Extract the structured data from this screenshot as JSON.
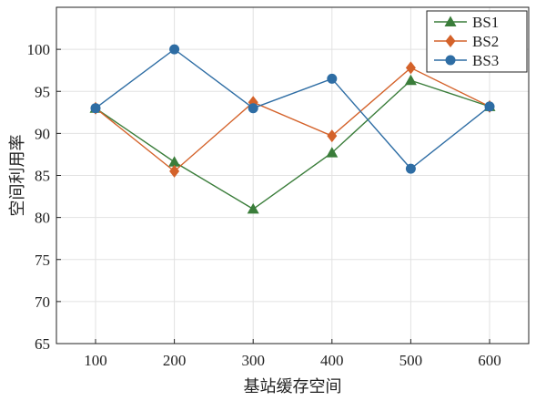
{
  "chart_data": {
    "type": "line",
    "title": "",
    "xlabel": "基站缓存空间",
    "ylabel": "空间利用率",
    "x": [
      100,
      200,
      300,
      400,
      500,
      600
    ],
    "x_tick_labels": [
      "100",
      "200",
      "300",
      "400",
      "500",
      "600"
    ],
    "ylim": [
      65,
      105
    ],
    "y_ticks": [
      65,
      70,
      75,
      80,
      85,
      90,
      95,
      100
    ],
    "y_tick_labels": [
      "65",
      "70",
      "75",
      "80",
      "85",
      "90",
      "95",
      "100"
    ],
    "grid": true,
    "legend_position": "top-right",
    "series": [
      {
        "name": "BS1",
        "marker": "triangle",
        "color": "#3a7d3a",
        "values": [
          93.0,
          86.6,
          81.0,
          87.7,
          96.3,
          93.2
        ]
      },
      {
        "name": "BS2",
        "marker": "diamond",
        "color": "#d4622a",
        "values": [
          93.0,
          85.5,
          93.7,
          89.7,
          97.8,
          93.2
        ]
      },
      {
        "name": "BS3",
        "marker": "circle",
        "color": "#2e6da4",
        "values": [
          93.0,
          100.0,
          93.0,
          96.5,
          85.8,
          93.2
        ]
      }
    ]
  }
}
